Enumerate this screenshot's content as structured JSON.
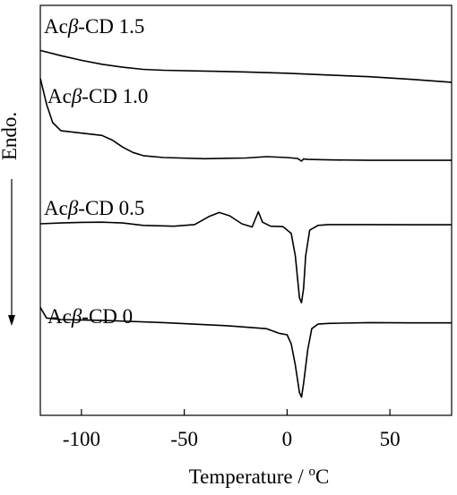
{
  "chart_data": {
    "type": "line",
    "xlabel_main": "Temperature / ",
    "xlabel_sup": "o",
    "xlabel_unit": "C",
    "ylabel": "Endo.",
    "xlim": [
      -120,
      80
    ],
    "x_ticks": [
      -100,
      -50,
      0,
      50
    ],
    "x_tick_labels": [
      "-100",
      "-50",
      "0",
      "50"
    ],
    "y_ticks_shown": false,
    "grid": false,
    "legend": "none",
    "line_color": "#000000",
    "series": [
      {
        "name_prefix": "Ac",
        "name_beta": "β",
        "name_suffix": "-CD 1.5",
        "y_unit": "offset heat flow (a.u.)",
        "points": [
          [
            -120,
            0.9
          ],
          [
            -110,
            0.66
          ],
          [
            -100,
            0.44
          ],
          [
            -90,
            0.26
          ],
          [
            -80,
            0.12
          ],
          [
            -70,
            0.02
          ],
          [
            -60,
            -0.02
          ],
          [
            -40,
            -0.06
          ],
          [
            -20,
            -0.1
          ],
          [
            0,
            -0.16
          ],
          [
            20,
            -0.24
          ],
          [
            40,
            -0.32
          ],
          [
            60,
            -0.44
          ],
          [
            80,
            -0.58
          ]
        ]
      },
      {
        "name_prefix": "Ac",
        "name_beta": "β",
        "name_suffix": "-CD 1.0",
        "y_unit": "offset heat flow (a.u.)",
        "points": [
          [
            -120,
            2.4
          ],
          [
            -117,
            1.3
          ],
          [
            -114,
            0.5
          ],
          [
            -110,
            0.15
          ],
          [
            -100,
            0.05
          ],
          [
            -90,
            -0.05
          ],
          [
            -85,
            -0.25
          ],
          [
            -80,
            -0.55
          ],
          [
            -75,
            -0.78
          ],
          [
            -70,
            -0.92
          ],
          [
            -60,
            -1.0
          ],
          [
            -40,
            -1.05
          ],
          [
            -20,
            -1.02
          ],
          [
            -10,
            -0.96
          ],
          [
            0,
            -1.0
          ],
          [
            5,
            -1.04
          ],
          [
            7,
            -1.15
          ],
          [
            8,
            -1.06
          ],
          [
            10,
            -1.08
          ],
          [
            20,
            -1.1
          ],
          [
            40,
            -1.12
          ],
          [
            60,
            -1.12
          ],
          [
            80,
            -1.12
          ]
        ]
      },
      {
        "name_prefix": "Ac",
        "name_beta": "β",
        "name_suffix": "-CD 0.5",
        "y_unit": "offset heat flow (a.u.)",
        "points": [
          [
            -120,
            0.0
          ],
          [
            -110,
            0.05
          ],
          [
            -100,
            0.09
          ],
          [
            -90,
            0.1
          ],
          [
            -80,
            0.05
          ],
          [
            -70,
            -0.1
          ],
          [
            -55,
            -0.15
          ],
          [
            -45,
            -0.05
          ],
          [
            -38,
            0.45
          ],
          [
            -33,
            0.7
          ],
          [
            -28,
            0.5
          ],
          [
            -22,
            0.0
          ],
          [
            -17,
            -0.2
          ],
          [
            -14,
            0.75
          ],
          [
            -12,
            0.1
          ],
          [
            -8,
            -0.15
          ],
          [
            -2,
            -0.18
          ],
          [
            2,
            -0.6
          ],
          [
            4,
            -2.0
          ],
          [
            6,
            -4.6
          ],
          [
            7,
            -4.9
          ],
          [
            8,
            -4.0
          ],
          [
            9,
            -2.0
          ],
          [
            11,
            -0.4
          ],
          [
            15,
            -0.1
          ],
          [
            20,
            -0.05
          ],
          [
            40,
            -0.05
          ],
          [
            60,
            -0.06
          ],
          [
            80,
            -0.06
          ]
        ]
      },
      {
        "name_prefix": "Ac",
        "name_beta": "β",
        "name_suffix": "-CD 0",
        "y_unit": "offset heat flow (a.u.)",
        "points": [
          [
            -120,
            0.8
          ],
          [
            -117,
            0.1
          ],
          [
            -110,
            0.0
          ],
          [
            -90,
            -0.05
          ],
          [
            -60,
            -0.2
          ],
          [
            -30,
            -0.4
          ],
          [
            -10,
            -0.6
          ],
          [
            -4,
            -0.9
          ],
          [
            0,
            -1.0
          ],
          [
            2,
            -1.6
          ],
          [
            4,
            -3.0
          ],
          [
            6,
            -4.8
          ],
          [
            7,
            -5.1
          ],
          [
            8,
            -4.2
          ],
          [
            10,
            -2.0
          ],
          [
            12,
            -0.6
          ],
          [
            15,
            -0.3
          ],
          [
            20,
            -0.25
          ],
          [
            40,
            -0.2
          ],
          [
            60,
            -0.22
          ],
          [
            80,
            -0.22
          ]
        ]
      }
    ]
  }
}
